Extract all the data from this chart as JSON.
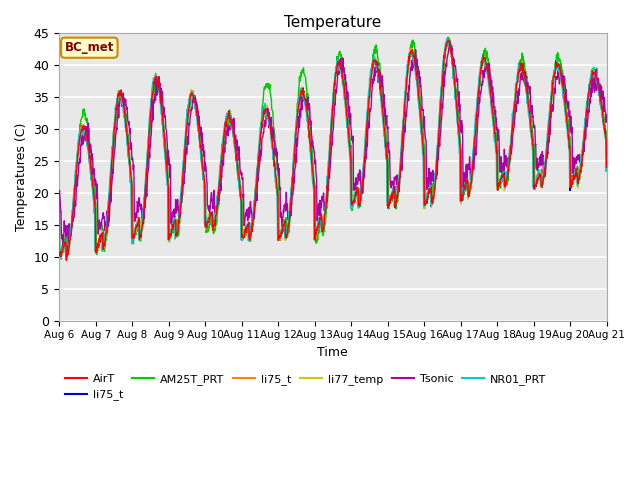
{
  "title": "Temperature",
  "ylabel": "Temperatures (C)",
  "xlabel": "Time",
  "ylim": [
    0,
    45
  ],
  "yticks": [
    0,
    5,
    10,
    15,
    20,
    25,
    30,
    35,
    40,
    45
  ],
  "annotation": "BC_met",
  "series_colors": {
    "AirT": "#ff0000",
    "li75_t_blue": "#0000cc",
    "AM25T_PRT": "#00cc00",
    "li75_t_orange": "#ff8800",
    "li77_temp": "#cccc00",
    "Tsonic": "#aa00aa",
    "NR01_PRT": "#00cccc"
  },
  "background_color": "#ffffff",
  "plot_bg_color": "#e8e8e8",
  "grid_color": "#ffffff",
  "x_labels": [
    "Aug 6",
    "Aug 7",
    "Aug 8",
    "Aug 9",
    "Aug 10",
    "Aug 11",
    "Aug 12",
    "Aug 13",
    "Aug 14",
    "Aug 15",
    "Aug 16",
    "Aug 17",
    "Aug 18",
    "Aug 19",
    "Aug 20",
    "Aug 21"
  ],
  "day_peaks": [
    29,
    31,
    38,
    38,
    34,
    31,
    34,
    37,
    42,
    40,
    43,
    44,
    39,
    40,
    40,
    38
  ],
  "day_troughs": [
    10,
    11,
    13,
    13,
    15,
    13,
    13,
    13,
    18,
    18,
    18,
    19,
    21,
    21,
    21,
    24
  ],
  "am25t_peaks": [
    34,
    32,
    37,
    38,
    34,
    31,
    40,
    39,
    43,
    42,
    44,
    44,
    41,
    41,
    41,
    38
  ],
  "am25t_troughs": [
    11,
    11,
    13,
    13,
    14,
    13,
    13,
    12,
    18,
    18,
    19,
    19,
    21,
    21,
    21,
    24
  ]
}
